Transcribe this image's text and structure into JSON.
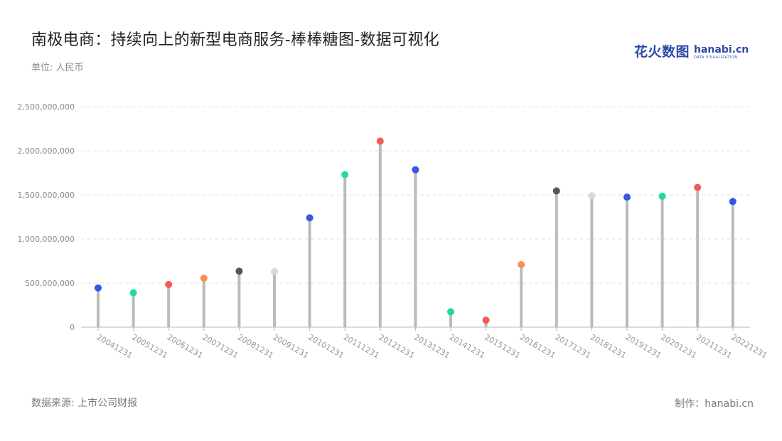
{
  "title": "南极电商：持续向上的新型电商服务-棒棒糖图-数据可视化",
  "unit": "单位: 人民币",
  "source": "数据来源: 上市公司财报",
  "credit": "制作：hanabi.cn",
  "logo": {
    "cn": "花火数图",
    "en": "hanabi.cn",
    "sub": "DATA VISUALIZATION"
  },
  "chart_data": {
    "type": "lollipop",
    "categories": [
      "20041231",
      "20051231",
      "20061231",
      "20071231",
      "20081231",
      "20091231",
      "20101231",
      "20111231",
      "20121231",
      "20131231",
      "20141231",
      "20151231",
      "20161231",
      "20171231",
      "20181231",
      "20191231",
      "20201231",
      "20211231",
      "20221231"
    ],
    "values": [
      445000000,
      390000000,
      485000000,
      555000000,
      635000000,
      630000000,
      1240000000,
      1730000000,
      2110000000,
      1785000000,
      175000000,
      80000000,
      710000000,
      1545000000,
      1490000000,
      1475000000,
      1485000000,
      1585000000,
      1425000000
    ],
    "dot_colors": [
      "#3a55e0",
      "#1ddc9c",
      "#f25b55",
      "#f5934f",
      "#55555f",
      "#d6d8e4",
      "#3a55e0",
      "#1ddc9c",
      "#f25b55",
      "#3a55e0",
      "#1ddc9c",
      "#f25b55",
      "#f5934f",
      "#55555f",
      "#d6d8e4",
      "#3a55e0",
      "#1ddc9c",
      "#f25b55",
      "#3a55e0"
    ],
    "stem_color": "#bbbbbb",
    "ylim": [
      0,
      2500000000
    ],
    "yticks": [
      0,
      500000000,
      1000000000,
      1500000000,
      2000000000,
      2500000000
    ],
    "ytick_labels": [
      "0",
      "500,000,000",
      "1,000,000,000",
      "1,500,000,000",
      "2,000,000,000",
      "2,500,000,000"
    ],
    "grid": true,
    "xlabel": "",
    "ylabel": ""
  }
}
